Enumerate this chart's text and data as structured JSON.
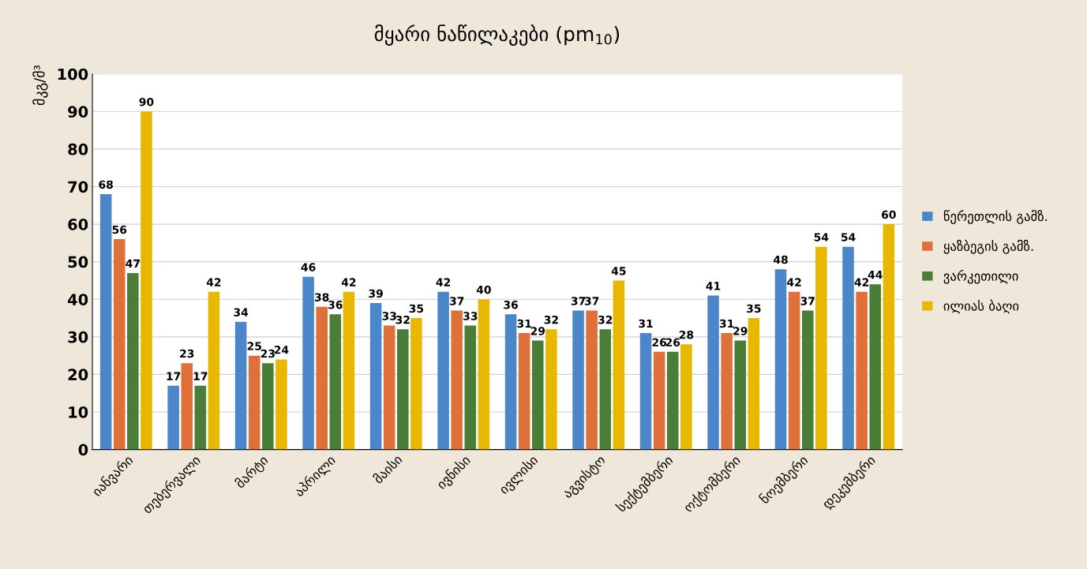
{
  "chart_data": {
    "type": "bar",
    "title": "მყარი ნაწილაკები (pm$_{10}$)",
    "ylabel": "მკგ/მ³",
    "categories": [
      "იანვარი",
      "თებერვალი",
      "მარტი",
      "აპრილი",
      "მაისი",
      "ივნისი",
      "ივლისი",
      "აგვისტო",
      "სექტემბერი",
      "ოქტომბერი",
      "ნოემბერი",
      "დეკემბერი"
    ],
    "series": [
      {
        "name": "წერეთლის გამზ.",
        "color": "#4a86c8",
        "values": [
          68,
          17,
          34,
          46,
          39,
          42,
          36,
          37,
          31,
          41,
          48,
          54
        ]
      },
      {
        "name": "ყაზბეგის გამზ.",
        "color": "#e0703a",
        "values": [
          56,
          23,
          25,
          38,
          33,
          37,
          31,
          37,
          26,
          31,
          42,
          42
        ]
      },
      {
        "name": "ვარკეთილი",
        "color": "#4a7d38",
        "values": [
          47,
          17,
          23,
          36,
          32,
          33,
          29,
          32,
          26,
          29,
          37,
          44
        ]
      },
      {
        "name": "ილიას ბაღი",
        "color": "#e8b800",
        "values": [
          90,
          42,
          24,
          42,
          35,
          40,
          32,
          45,
          28,
          35,
          54,
          60
        ]
      }
    ],
    "ylim": [
      0,
      100
    ],
    "yticks": [
      0,
      10,
      20,
      30,
      40,
      50,
      60,
      70,
      80,
      90,
      100
    ],
    "grid": "y",
    "legend": "right",
    "data_labels": true
  }
}
